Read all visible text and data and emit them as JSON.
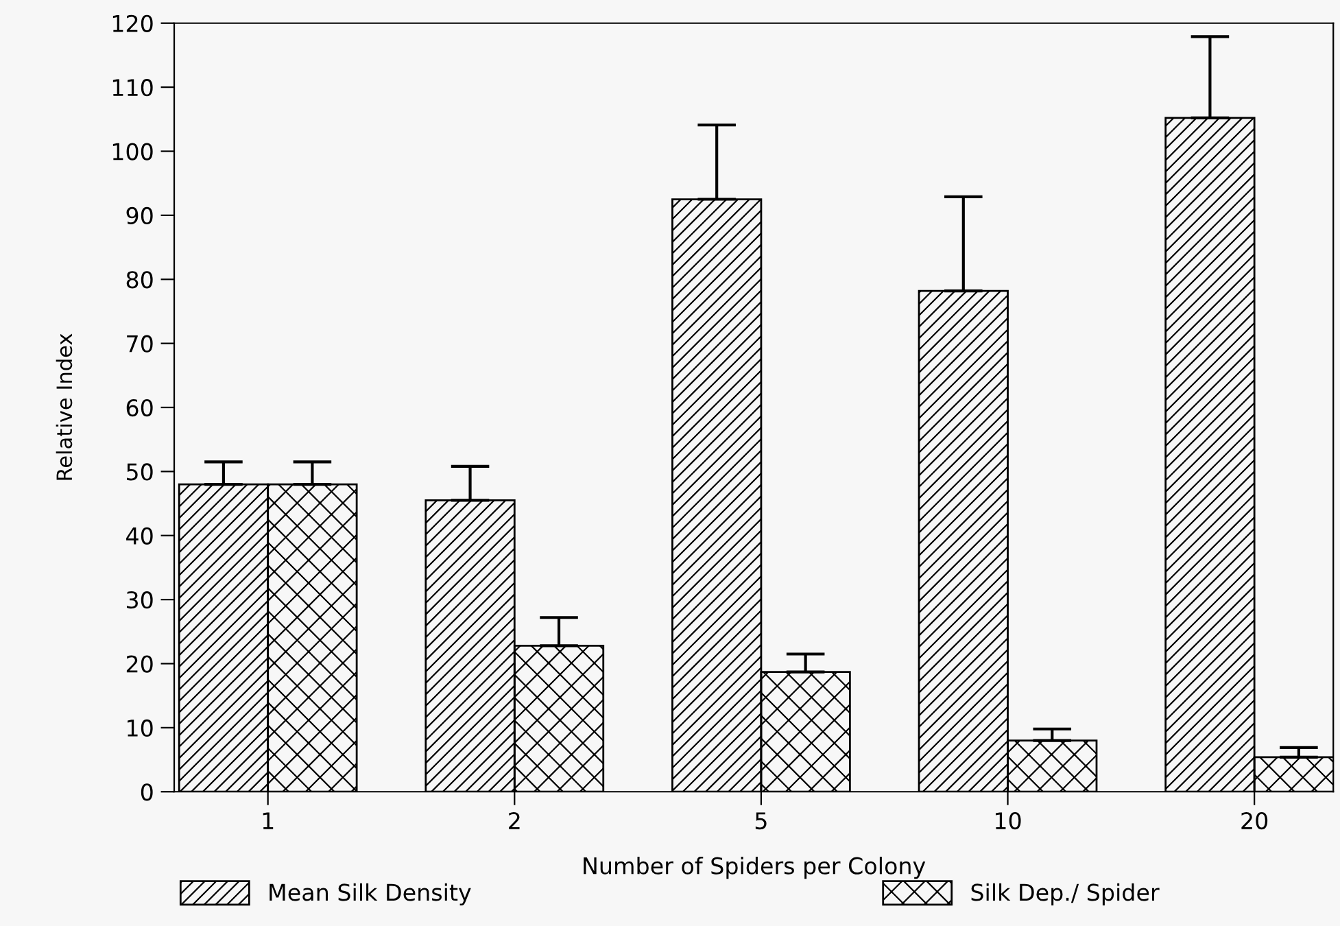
{
  "chart_data": {
    "type": "bar",
    "xlabel": "Number of Spiders per Colony",
    "ylabel": "Relative Index",
    "categories": [
      "1",
      "2",
      "5",
      "10",
      "20"
    ],
    "series": [
      {
        "name": "Mean Silk Density",
        "color": "#000000",
        "values": [
          48.0,
          45.5,
          92.5,
          78.2,
          105.2
        ],
        "errors": [
          [
            48.0,
            51.5
          ],
          [
            45.5,
            50.8
          ],
          [
            92.5,
            104.1
          ],
          [
            78.2,
            92.9
          ],
          [
            105.2,
            117.9
          ]
        ]
      },
      {
        "name": "Silk Dep./ Spider",
        "color": "#000000",
        "values": [
          48.0,
          22.8,
          18.7,
          8.0,
          5.4
        ],
        "errors": [
          [
            48.0,
            51.5
          ],
          [
            22.8,
            27.2
          ],
          [
            18.7,
            21.5
          ],
          [
            8.0,
            9.8
          ],
          [
            5.4,
            6.9
          ]
        ]
      }
    ],
    "ylim": [
      0,
      120
    ],
    "yticks": [
      0,
      10,
      20,
      30,
      40,
      50,
      60,
      70,
      80,
      90,
      100,
      110,
      120
    ],
    "grid": false,
    "legend": "bottom"
  }
}
